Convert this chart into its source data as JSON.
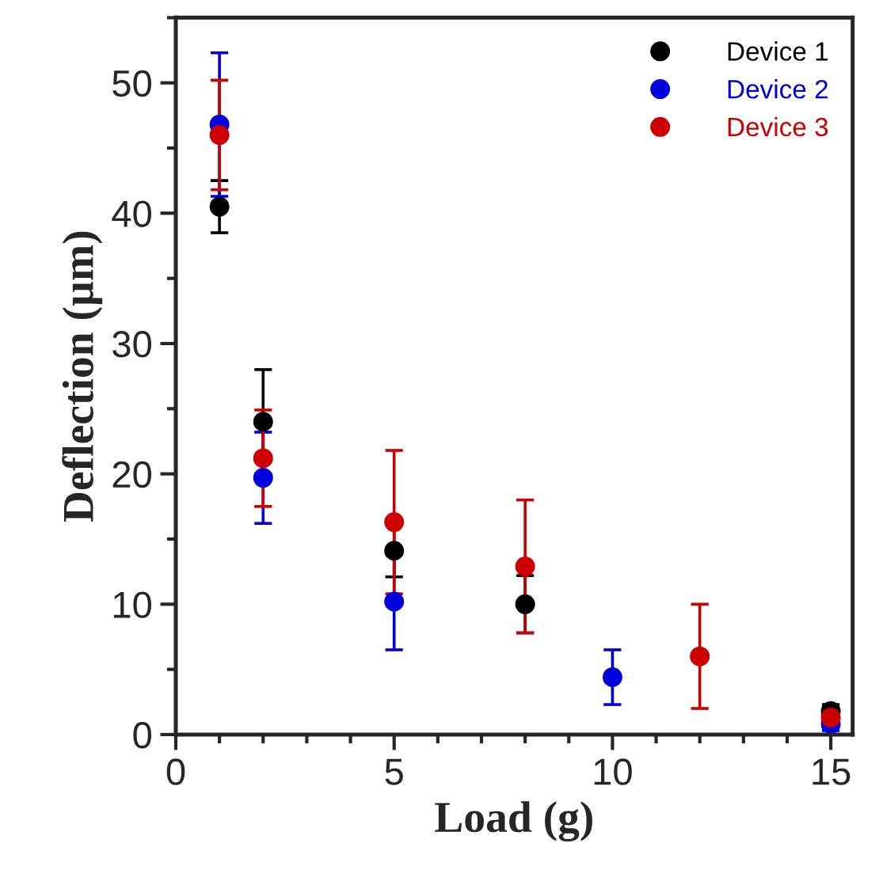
{
  "chart_data": {
    "type": "scatter",
    "xlabel": "Load (g)",
    "ylabel": "Deflection (µm)",
    "xlim": [
      0,
      15.5
    ],
    "ylim": [
      0,
      55
    ],
    "xticks": [
      0,
      5,
      10,
      15
    ],
    "yticks": [
      0,
      10,
      20,
      30,
      40,
      50
    ],
    "grid": false,
    "legend": "top right",
    "marker": "circle",
    "series": [
      {
        "name": "Device 1",
        "color": "#000000",
        "x": [
          1,
          2,
          5,
          8,
          12,
          15
        ],
        "values": [
          40.5,
          24,
          14.1,
          10,
          null,
          1.8
        ],
        "errors": [
          2,
          4,
          2,
          2.2,
          null,
          0.5
        ]
      },
      {
        "name": "Device 2",
        "color": "#0000dd",
        "x": [
          1,
          2,
          5,
          10,
          15
        ],
        "values": [
          46.8,
          19.7,
          10.2,
          4.4,
          0.8
        ],
        "errors": [
          5.5,
          3.5,
          3.7,
          2.1,
          0.5
        ]
      },
      {
        "name": "Device 3",
        "color": "#cc0000",
        "x": [
          1,
          2,
          5,
          8,
          12,
          15
        ],
        "values": [
          46,
          21.2,
          16.3,
          12.9,
          6,
          1.3
        ],
        "errors": [
          4.2,
          3.7,
          5.5,
          5.1,
          4,
          0.5
        ]
      }
    ]
  }
}
